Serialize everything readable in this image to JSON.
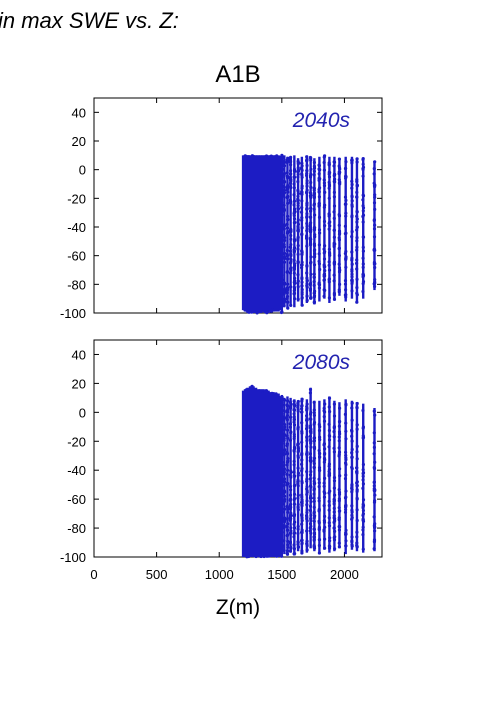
{
  "title_fragment": "in max SWE vs. Z:",
  "scenario": "A1B",
  "x_axis_label": "Z(m)",
  "point_color": "#1c1cc4",
  "label_color": "#2323b0",
  "chart_data": [
    {
      "type": "scatter",
      "panel_label": "2040s",
      "xlim": [
        0,
        2300
      ],
      "ylim": [
        -100,
        50
      ],
      "xticks": [
        "0",
        "500",
        "1000",
        "1500",
        "2000"
      ],
      "yticks": [
        "-100",
        "-80",
        "-60",
        "-40",
        "-20",
        "0",
        "20",
        "40"
      ],
      "x_range_of_points": [
        1200,
        2250
      ],
      "y_range_of_points": [
        -100,
        10
      ],
      "columns_z": [
        1205,
        1220,
        1240,
        1260,
        1280,
        1300,
        1320,
        1340,
        1360,
        1380,
        1400,
        1420,
        1440,
        1460,
        1480,
        1500,
        1520,
        1545,
        1570,
        1600,
        1630,
        1660,
        1700,
        1730,
        1760,
        1800,
        1840,
        1880,
        1920,
        1960,
        2010,
        2060,
        2100,
        2150,
        2240
      ],
      "column_max_y": [
        10,
        10,
        10,
        10,
        10,
        10,
        10,
        10,
        10,
        10,
        10,
        10,
        10,
        10,
        9,
        10,
        10,
        9,
        9,
        10,
        8,
        9,
        10,
        9,
        8,
        9,
        10,
        9,
        9,
        8,
        9,
        9,
        8,
        8,
        6
      ],
      "column_min_y": [
        -98,
        -99,
        -100,
        -100,
        -99,
        -100,
        -100,
        -99,
        -99,
        -100,
        -98,
        -99,
        -97,
        -99,
        -98,
        -100,
        -96,
        -97,
        -95,
        -96,
        -92,
        -95,
        -93,
        -90,
        -94,
        -92,
        -90,
        -93,
        -91,
        -88,
        -92,
        -90,
        -93,
        -90,
        -84
      ]
    },
    {
      "type": "scatter",
      "panel_label": "2080s",
      "xlim": [
        0,
        2300
      ],
      "ylim": [
        -100,
        50
      ],
      "xticks": [
        "0",
        "500",
        "1000",
        "1500",
        "2000"
      ],
      "yticks": [
        "-100",
        "-80",
        "-60",
        "-40",
        "-20",
        "0",
        "20",
        "40"
      ],
      "x_range_of_points": [
        1200,
        2250
      ],
      "y_range_of_points": [
        -100,
        18
      ],
      "columns_z": [
        1205,
        1220,
        1240,
        1260,
        1280,
        1300,
        1320,
        1340,
        1360,
        1380,
        1400,
        1420,
        1440,
        1460,
        1480,
        1500,
        1520,
        1545,
        1570,
        1600,
        1630,
        1660,
        1700,
        1730,
        1760,
        1800,
        1840,
        1880,
        1920,
        1960,
        2010,
        2060,
        2100,
        2150,
        2240
      ],
      "column_max_y": [
        15,
        16,
        17,
        18,
        17,
        16,
        15,
        16,
        14,
        15,
        13,
        14,
        12,
        13,
        11,
        12,
        10,
        11,
        10,
        9,
        8,
        10,
        9,
        17,
        8,
        8,
        9,
        11,
        8,
        7,
        9,
        8,
        7,
        6,
        3
      ],
      "column_min_y": [
        -100,
        -100,
        -100,
        -100,
        -100,
        -100,
        -100,
        -100,
        -100,
        -100,
        -100,
        -100,
        -99,
        -100,
        -100,
        -100,
        -98,
        -99,
        -97,
        -99,
        -96,
        -98,
        -97,
        -94,
        -96,
        -98,
        -95,
        -97,
        -96,
        -94,
        -98,
        -95,
        -96,
        -97,
        -96
      ]
    }
  ]
}
